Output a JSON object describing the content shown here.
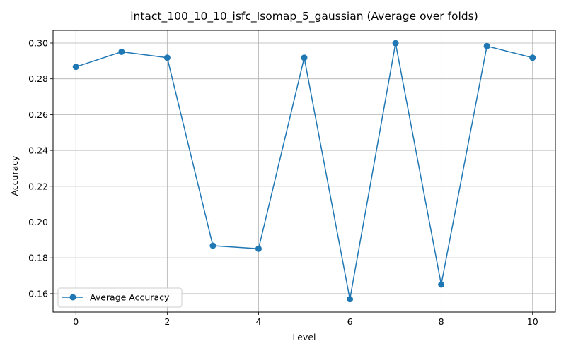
{
  "chart_data": {
    "type": "line",
    "title": "intact_100_10_10_isfc_Isomap_5_gaussian (Average over folds)",
    "xlabel": "Level",
    "ylabel": "Accuracy",
    "x": [
      0,
      1,
      2,
      3,
      4,
      5,
      6,
      7,
      8,
      9,
      10
    ],
    "series": [
      {
        "name": "Average Accuracy",
        "color": "#1f77b4",
        "marker": "circle",
        "values": [
          0.2867,
          0.2951,
          0.2918,
          0.1868,
          0.1851,
          0.2918,
          0.1569,
          0.2999,
          0.1651,
          0.2983,
          0.2918
        ]
      }
    ],
    "xlim": [
      -0.5,
      10.5
    ],
    "ylim": [
      0.1497,
      0.3071
    ],
    "xticks": [
      0,
      2,
      4,
      6,
      8,
      10
    ],
    "xtick_labels": [
      "0",
      "2",
      "4",
      "6",
      "8",
      "10"
    ],
    "yticks": [
      0.16,
      0.18,
      0.2,
      0.22,
      0.24,
      0.26,
      0.28,
      0.3
    ],
    "ytick_labels": [
      "0.16",
      "0.18",
      "0.20",
      "0.22",
      "0.24",
      "0.26",
      "0.28",
      "0.30"
    ],
    "grid": true,
    "legend_position": "lower-left"
  }
}
